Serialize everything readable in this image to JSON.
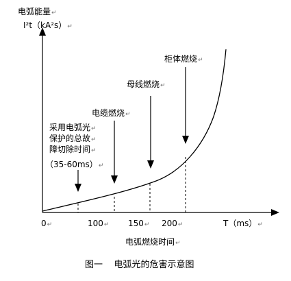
{
  "y_axis_title": "电弧能量",
  "y_axis_unit": "I²t（kA²s）",
  "x_axis_title": "电弧燃烧时间",
  "x_axis_unit": "T（ms）",
  "x_ticks": [
    "0",
    "100",
    "150",
    "200"
  ],
  "caption": "图一    电弧光的危害示意图",
  "labels": {
    "cabinet": "柜体燃烧",
    "busbar": "母线燃烧",
    "cable": "电缆燃烧",
    "protection_line1": "采用电弧光",
    "protection_line2": "保护的总故",
    "protection_line3": "障切除时间",
    "protection_line4": "（35-60ms）"
  },
  "paragraph_mark": "↵",
  "colors": {
    "line": "#000000",
    "mark": "#777777",
    "wavy": "#e03a3a"
  }
}
